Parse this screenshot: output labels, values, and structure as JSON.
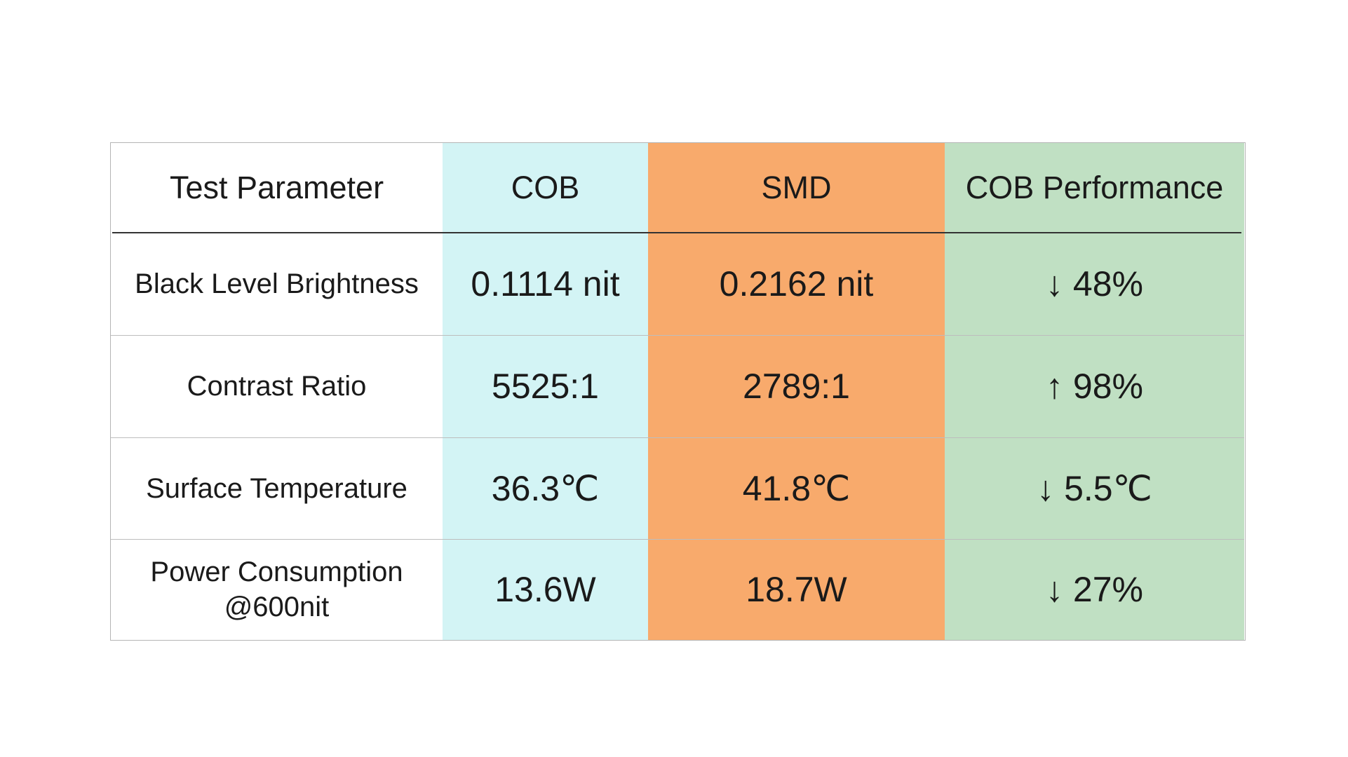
{
  "table": {
    "header": [
      "Test Parameter",
      "COB",
      "SMD",
      "COB Performance"
    ],
    "rows": [
      [
        "Black Level Brightness",
        "0.1114 nit",
        "0.2162 nit",
        "↓ 48%"
      ],
      [
        "Contrast Ratio",
        "5525:1",
        "2789:1",
        "↑ 98%"
      ],
      [
        "Surface Temperature",
        "36.3℃",
        "41.8℃",
        "↓ 5.5℃"
      ],
      [
        "Power Consumption @600nit",
        "13.6W",
        "18.7W",
        "↓ 27%"
      ]
    ]
  }
}
